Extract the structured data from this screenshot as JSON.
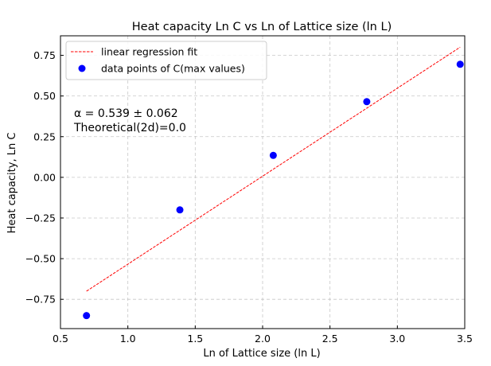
{
  "chart_data": {
    "type": "scatter",
    "title": "Heat capacity Ln C vs Ln of Lattice size (ln L)",
    "xlabel": "Ln of Lattice size (ln L)",
    "ylabel": "Heat capacity, Ln C",
    "xlim": [
      0.5,
      3.5
    ],
    "ylim": [
      -0.93,
      0.87
    ],
    "xticks": [
      0.5,
      1.0,
      1.5,
      2.0,
      2.5,
      3.0,
      3.5
    ],
    "xtick_labels": [
      "0.5",
      "1.0",
      "1.5",
      "2.0",
      "2.5",
      "3.0",
      "3.5"
    ],
    "yticks": [
      -0.75,
      -0.5,
      -0.25,
      0.0,
      0.25,
      0.5,
      0.75
    ],
    "ytick_labels": [
      "−0.75",
      "−0.50",
      "−0.25",
      "0.00",
      "0.25",
      "0.50",
      "0.75"
    ],
    "grid": true,
    "legend_position": "top-left",
    "series": [
      {
        "name": "data points of C(max values)",
        "kind": "scatter",
        "color": "#0000ff",
        "x": [
          0.693,
          1.386,
          2.079,
          2.773,
          3.466
        ],
        "y": [
          -0.85,
          -0.2,
          0.135,
          0.465,
          0.695
        ]
      },
      {
        "name": "linear regression fit",
        "kind": "line",
        "style": "dashed",
        "color": "#ff0000",
        "x": [
          0.693,
          3.466
        ],
        "y": [
          -0.7,
          0.8
        ]
      }
    ],
    "annotations": [
      "α = 0.539 ± 0.062",
      "Theoretical(2d)=0.0"
    ]
  }
}
